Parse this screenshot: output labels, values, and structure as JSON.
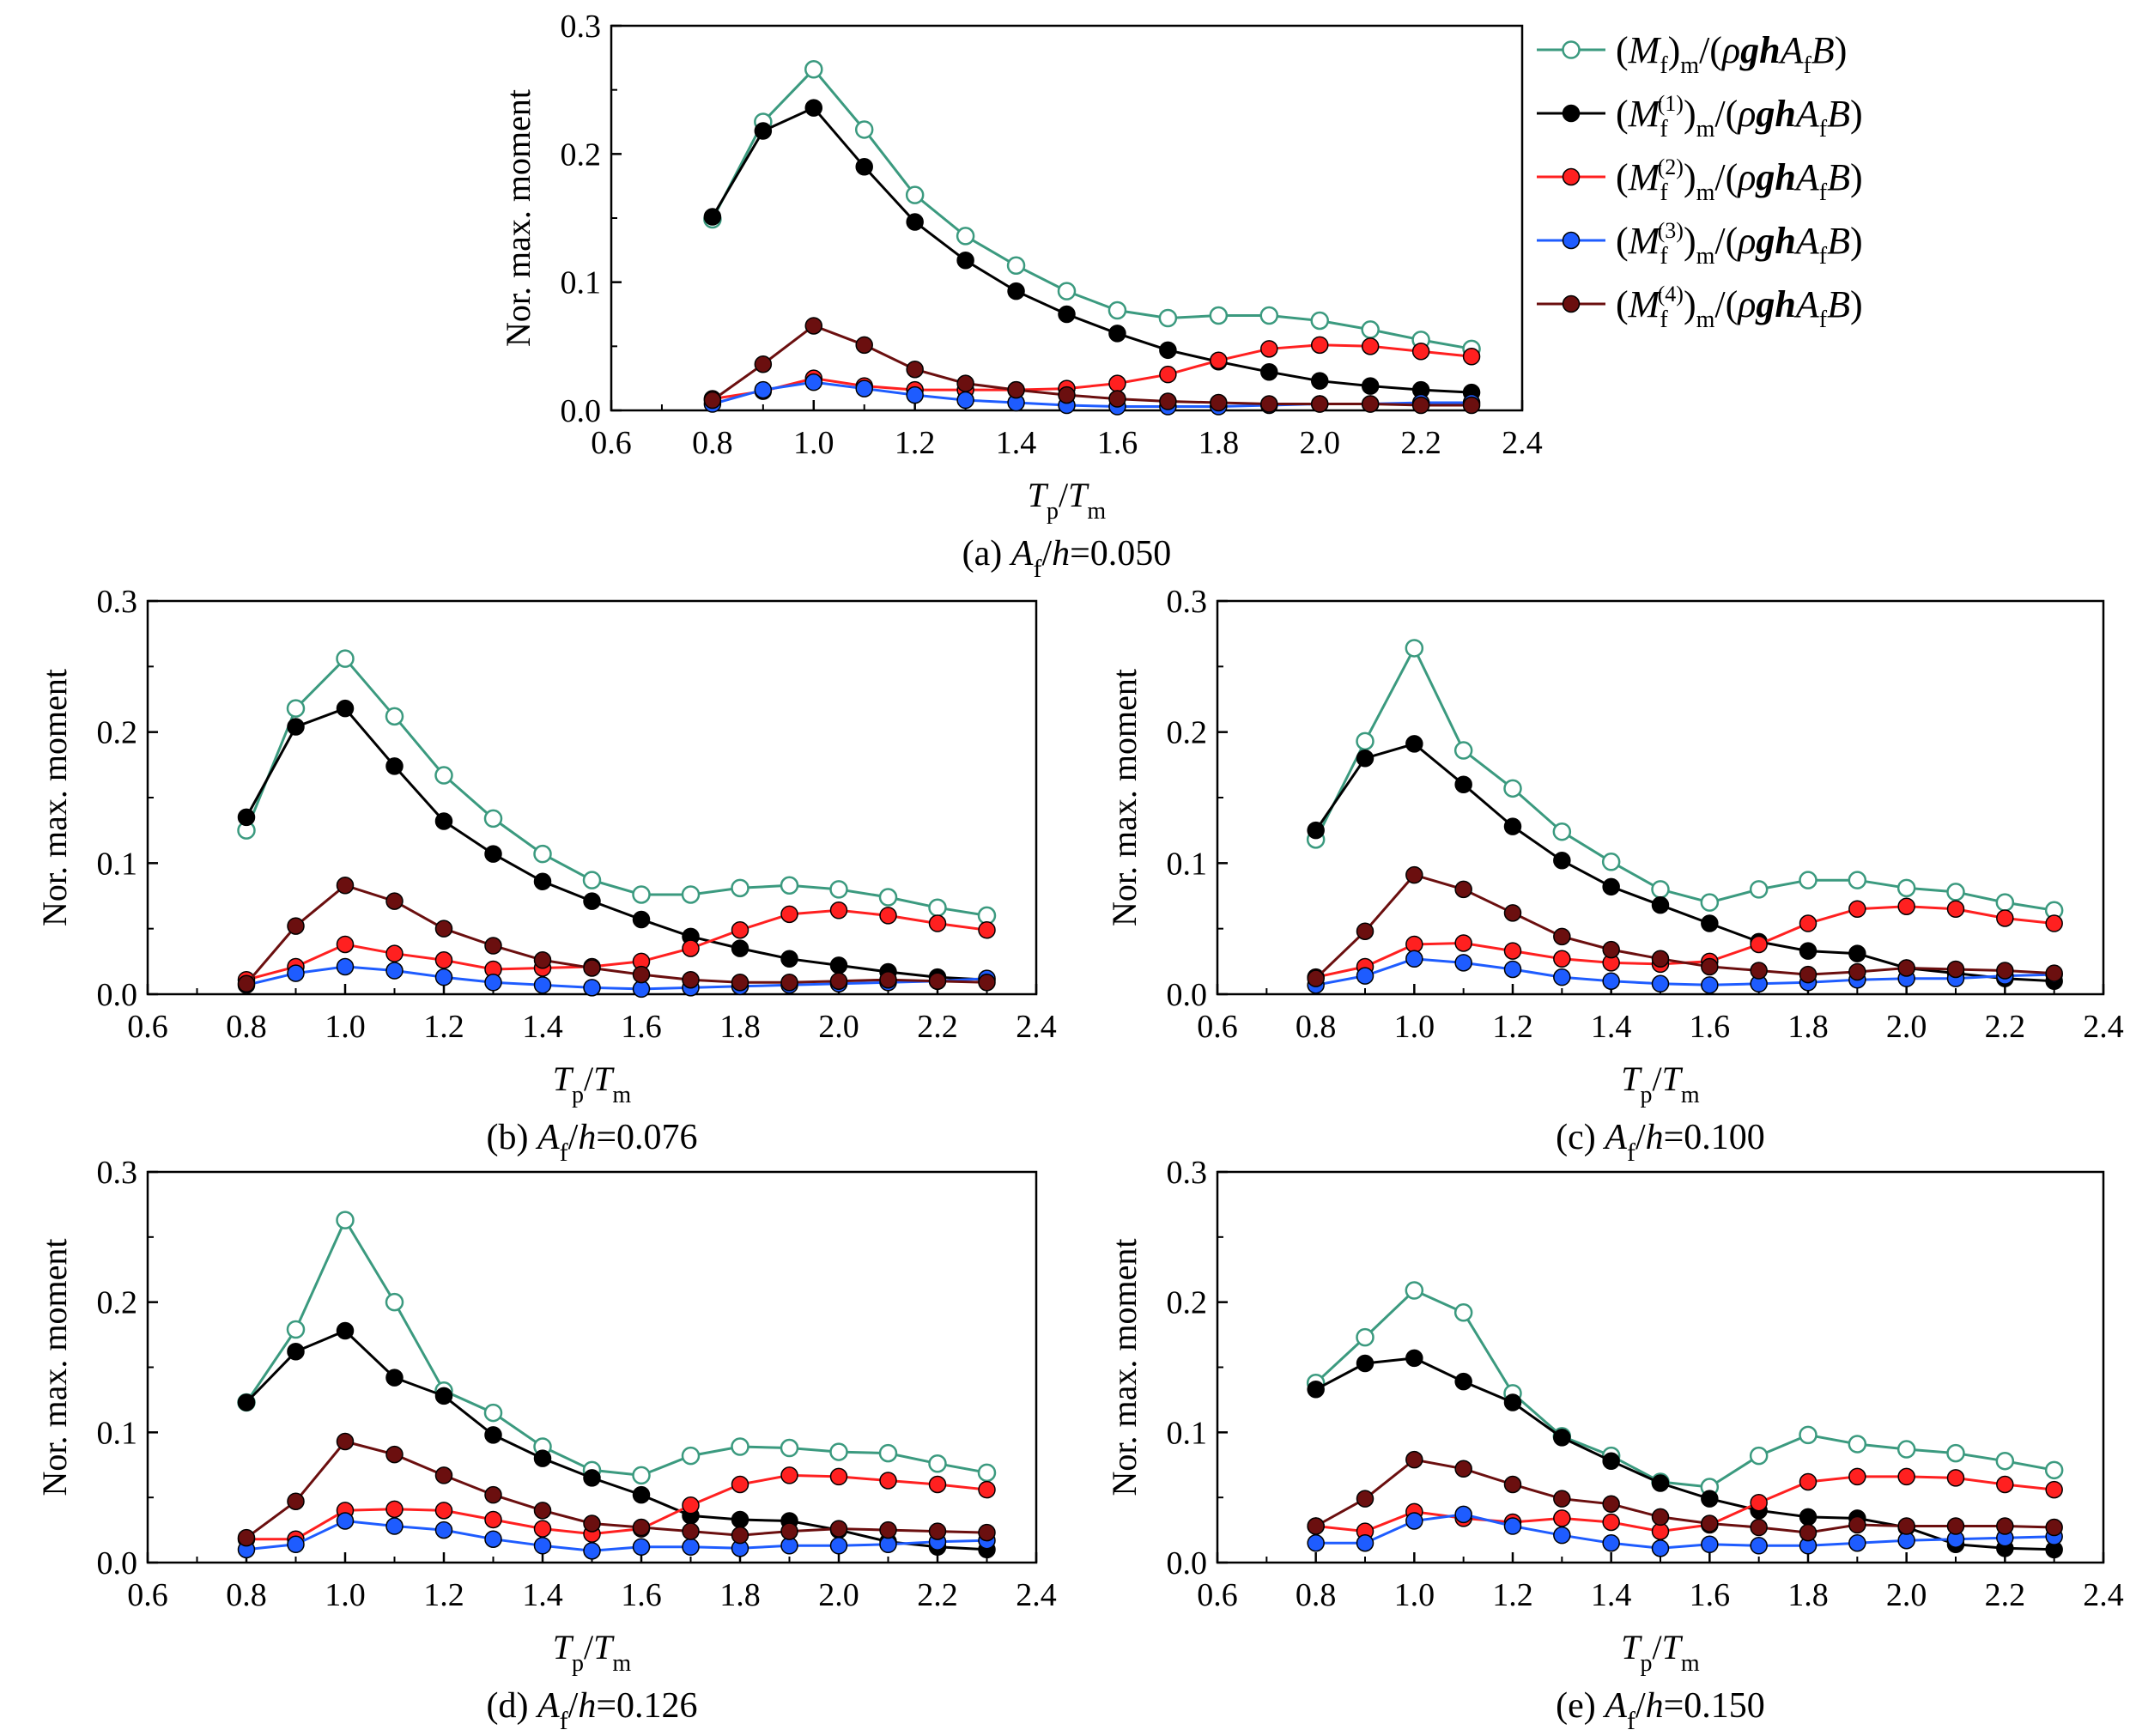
{
  "chart_data": [
    {
      "id": "a",
      "type": "line",
      "caption": {
        "prefix": "(a) ",
        "var": "A",
        "sub": "f",
        "mid": "/",
        "var2": "h",
        "suffix": "=0.050"
      },
      "ylabel": "Nor. max. moment",
      "xlabel": {
        "main": "T",
        "sub": "p",
        "slash": "/",
        "main2": "T",
        "sub2": "m"
      },
      "xlim": [
        0.6,
        2.4
      ],
      "ylim": [
        0.0,
        0.3
      ],
      "xticks": [
        "0.6",
        "0.8",
        "1.0",
        "1.2",
        "1.4",
        "1.6",
        "1.8",
        "2.0",
        "2.2",
        "2.4"
      ],
      "yticks": [
        "0.0",
        "0.1",
        "0.2",
        "0.3"
      ],
      "x": [
        0.8,
        0.9,
        1.0,
        1.1,
        1.2,
        1.3,
        1.4,
        1.5,
        1.6,
        1.7,
        1.8,
        1.9,
        2.0,
        2.1,
        2.2,
        2.3
      ],
      "series": [
        {
          "key": "total",
          "values": [
            0.149,
            0.225,
            0.266,
            0.219,
            0.168,
            0.136,
            0.113,
            0.093,
            0.078,
            0.072,
            0.074,
            0.074,
            0.07,
            0.063,
            0.055,
            0.048
          ]
        },
        {
          "key": "m1",
          "values": [
            0.151,
            0.218,
            0.236,
            0.19,
            0.147,
            0.117,
            0.093,
            0.075,
            0.06,
            0.047,
            0.038,
            0.03,
            0.023,
            0.019,
            0.016,
            0.014
          ]
        },
        {
          "key": "m2",
          "values": [
            0.009,
            0.015,
            0.025,
            0.019,
            0.016,
            0.016,
            0.016,
            0.017,
            0.021,
            0.028,
            0.039,
            0.048,
            0.051,
            0.05,
            0.046,
            0.042
          ]
        },
        {
          "key": "m3",
          "values": [
            0.005,
            0.016,
            0.022,
            0.017,
            0.012,
            0.008,
            0.006,
            0.004,
            0.003,
            0.003,
            0.003,
            0.004,
            0.005,
            0.005,
            0.006,
            0.006
          ]
        },
        {
          "key": "m4",
          "values": [
            0.008,
            0.036,
            0.066,
            0.051,
            0.032,
            0.021,
            0.016,
            0.012,
            0.009,
            0.007,
            0.006,
            0.005,
            0.005,
            0.005,
            0.004,
            0.004
          ]
        }
      ]
    },
    {
      "id": "b",
      "type": "line",
      "caption": {
        "prefix": "(b) ",
        "var": "A",
        "sub": "f",
        "mid": "/",
        "var2": "h",
        "suffix": "=0.076"
      },
      "ylabel": "Nor. max. moment",
      "xlabel": {
        "main": "T",
        "sub": "p",
        "slash": "/",
        "main2": "T",
        "sub2": "m"
      },
      "xlim": [
        0.6,
        2.4
      ],
      "ylim": [
        0.0,
        0.3
      ],
      "xticks": [
        "0.6",
        "0.8",
        "1.0",
        "1.2",
        "1.4",
        "1.6",
        "1.8",
        "2.0",
        "2.2",
        "2.4"
      ],
      "yticks": [
        "0.0",
        "0.1",
        "0.2",
        "0.3"
      ],
      "x": [
        0.8,
        0.9,
        1.0,
        1.1,
        1.2,
        1.3,
        1.4,
        1.5,
        1.6,
        1.7,
        1.8,
        1.9,
        2.0,
        2.1,
        2.2,
        2.3
      ],
      "series": [
        {
          "key": "total",
          "values": [
            0.125,
            0.218,
            0.256,
            0.212,
            0.167,
            0.134,
            0.107,
            0.087,
            0.076,
            0.076,
            0.081,
            0.083,
            0.08,
            0.074,
            0.066,
            0.06
          ]
        },
        {
          "key": "m1",
          "values": [
            0.135,
            0.204,
            0.218,
            0.174,
            0.132,
            0.107,
            0.086,
            0.071,
            0.057,
            0.044,
            0.035,
            0.027,
            0.022,
            0.017,
            0.013,
            0.011
          ]
        },
        {
          "key": "m2",
          "values": [
            0.011,
            0.021,
            0.038,
            0.031,
            0.026,
            0.019,
            0.02,
            0.021,
            0.025,
            0.035,
            0.049,
            0.061,
            0.064,
            0.06,
            0.054,
            0.049
          ]
        },
        {
          "key": "m3",
          "values": [
            0.007,
            0.016,
            0.021,
            0.018,
            0.013,
            0.009,
            0.007,
            0.005,
            0.004,
            0.005,
            0.006,
            0.007,
            0.008,
            0.009,
            0.01,
            0.012
          ]
        },
        {
          "key": "m4",
          "values": [
            0.008,
            0.052,
            0.083,
            0.071,
            0.05,
            0.037,
            0.026,
            0.02,
            0.015,
            0.011,
            0.009,
            0.009,
            0.01,
            0.011,
            0.01,
            0.009
          ]
        }
      ]
    },
    {
      "id": "c",
      "type": "line",
      "caption": {
        "prefix": "(c) ",
        "var": "A",
        "sub": "f",
        "mid": "/",
        "var2": "h",
        "suffix": "=0.100"
      },
      "ylabel": "Nor. max. moment",
      "xlabel": {
        "main": "T",
        "sub": "p",
        "slash": "/",
        "main2": "T",
        "sub2": "m"
      },
      "xlim": [
        0.6,
        2.4
      ],
      "ylim": [
        0.0,
        0.3
      ],
      "xticks": [
        "0.6",
        "0.8",
        "1.0",
        "1.2",
        "1.4",
        "1.6",
        "1.8",
        "2.0",
        "2.2",
        "2.4"
      ],
      "yticks": [
        "0.0",
        "0.1",
        "0.2",
        "0.3"
      ],
      "x": [
        0.8,
        0.9,
        1.0,
        1.1,
        1.2,
        1.3,
        1.4,
        1.5,
        1.6,
        1.7,
        1.8,
        1.9,
        2.0,
        2.1,
        2.2,
        2.3
      ],
      "series": [
        {
          "key": "total",
          "values": [
            0.118,
            0.193,
            0.264,
            0.186,
            0.157,
            0.124,
            0.101,
            0.08,
            0.07,
            0.08,
            0.087,
            0.087,
            0.081,
            0.078,
            0.07,
            0.064
          ]
        },
        {
          "key": "m1",
          "values": [
            0.125,
            0.18,
            0.191,
            0.16,
            0.128,
            0.102,
            0.082,
            0.068,
            0.054,
            0.04,
            0.033,
            0.031,
            0.02,
            0.016,
            0.012,
            0.01
          ]
        },
        {
          "key": "m2",
          "values": [
            0.013,
            0.021,
            0.038,
            0.039,
            0.033,
            0.027,
            0.024,
            0.023,
            0.025,
            0.038,
            0.054,
            0.065,
            0.067,
            0.065,
            0.058,
            0.054
          ]
        },
        {
          "key": "m3",
          "values": [
            0.007,
            0.014,
            0.027,
            0.024,
            0.019,
            0.013,
            0.01,
            0.008,
            0.007,
            0.008,
            0.009,
            0.011,
            0.012,
            0.012,
            0.014,
            0.015
          ]
        },
        {
          "key": "m4",
          "values": [
            0.012,
            0.048,
            0.091,
            0.08,
            0.062,
            0.044,
            0.034,
            0.027,
            0.021,
            0.018,
            0.015,
            0.017,
            0.02,
            0.019,
            0.018,
            0.016
          ]
        }
      ]
    },
    {
      "id": "d",
      "type": "line",
      "caption": {
        "prefix": "(d) ",
        "var": "A",
        "sub": "f",
        "mid": "/",
        "var2": "h",
        "suffix": "=0.126"
      },
      "ylabel": "Nor. max. moment",
      "xlabel": {
        "main": "T",
        "sub": "p",
        "slash": "/",
        "main2": "T",
        "sub2": "m"
      },
      "xlim": [
        0.6,
        2.4
      ],
      "ylim": [
        0.0,
        0.3
      ],
      "xticks": [
        "0.6",
        "0.8",
        "1.0",
        "1.2",
        "1.4",
        "1.6",
        "1.8",
        "2.0",
        "2.2",
        "2.4"
      ],
      "yticks": [
        "0.0",
        "0.1",
        "0.2",
        "0.3"
      ],
      "x": [
        0.8,
        0.9,
        1.0,
        1.1,
        1.2,
        1.3,
        1.4,
        1.5,
        1.6,
        1.7,
        1.8,
        1.9,
        2.0,
        2.1,
        2.2,
        2.3
      ],
      "series": [
        {
          "key": "total",
          "values": [
            0.123,
            0.179,
            0.263,
            0.2,
            0.132,
            0.115,
            0.089,
            0.071,
            0.067,
            0.082,
            0.089,
            0.088,
            0.085,
            0.084,
            0.076,
            0.069
          ]
        },
        {
          "key": "m1",
          "values": [
            0.123,
            0.162,
            0.178,
            0.142,
            0.128,
            0.098,
            0.08,
            0.065,
            0.052,
            0.036,
            0.033,
            0.032,
            0.025,
            0.016,
            0.012,
            0.01
          ]
        },
        {
          "key": "m2",
          "values": [
            0.018,
            0.018,
            0.04,
            0.041,
            0.04,
            0.033,
            0.026,
            0.022,
            0.026,
            0.044,
            0.06,
            0.067,
            0.066,
            0.063,
            0.06,
            0.056
          ]
        },
        {
          "key": "m3",
          "values": [
            0.01,
            0.014,
            0.032,
            0.028,
            0.025,
            0.018,
            0.013,
            0.009,
            0.012,
            0.012,
            0.011,
            0.013,
            0.013,
            0.014,
            0.016,
            0.017
          ]
        },
        {
          "key": "m4",
          "values": [
            0.019,
            0.047,
            0.093,
            0.083,
            0.067,
            0.052,
            0.04,
            0.03,
            0.027,
            0.024,
            0.021,
            0.024,
            0.026,
            0.025,
            0.024,
            0.023
          ]
        }
      ]
    },
    {
      "id": "e",
      "type": "line",
      "caption": {
        "prefix": "(e) ",
        "var": "A",
        "sub": "f",
        "mid": "/",
        "var2": "h",
        "suffix": "=0.150"
      },
      "ylabel": "Nor. max. moment",
      "xlabel": {
        "main": "T",
        "sub": "p",
        "slash": "/",
        "main2": "T",
        "sub2": "m"
      },
      "xlim": [
        0.6,
        2.4
      ],
      "ylim": [
        0.0,
        0.3
      ],
      "xticks": [
        "0.6",
        "0.8",
        "1.0",
        "1.2",
        "1.4",
        "1.6",
        "1.8",
        "2.0",
        "2.2",
        "2.4"
      ],
      "yticks": [
        "0.0",
        "0.1",
        "0.2",
        "0.3"
      ],
      "x": [
        0.8,
        0.9,
        1.0,
        1.1,
        1.2,
        1.3,
        1.4,
        1.5,
        1.6,
        1.7,
        1.8,
        1.9,
        2.0,
        2.1,
        2.2,
        2.3
      ],
      "series": [
        {
          "key": "total",
          "values": [
            0.138,
            0.173,
            0.209,
            0.192,
            0.13,
            0.097,
            0.082,
            0.062,
            0.058,
            0.082,
            0.098,
            0.091,
            0.087,
            0.084,
            0.078,
            0.071
          ]
        },
        {
          "key": "m1",
          "values": [
            0.133,
            0.153,
            0.157,
            0.139,
            0.123,
            0.096,
            0.078,
            0.061,
            0.049,
            0.04,
            0.035,
            0.034,
            0.027,
            0.014,
            0.011,
            0.01
          ]
        },
        {
          "key": "m2",
          "values": [
            0.028,
            0.024,
            0.039,
            0.034,
            0.031,
            0.034,
            0.031,
            0.024,
            0.029,
            0.046,
            0.062,
            0.066,
            0.066,
            0.065,
            0.06,
            0.056
          ]
        },
        {
          "key": "m3",
          "values": [
            0.015,
            0.015,
            0.032,
            0.037,
            0.028,
            0.021,
            0.015,
            0.011,
            0.014,
            0.013,
            0.013,
            0.015,
            0.017,
            0.018,
            0.019,
            0.02
          ]
        },
        {
          "key": "m4",
          "values": [
            0.028,
            0.049,
            0.079,
            0.072,
            0.06,
            0.049,
            0.045,
            0.035,
            0.03,
            0.027,
            0.023,
            0.029,
            0.028,
            0.028,
            0.028,
            0.027
          ]
        }
      ]
    }
  ],
  "series_styles": [
    {
      "key": "total",
      "line_color": "#3b9a7f",
      "marker": "open-circle",
      "marker_fill": "#ffffff"
    },
    {
      "key": "m1",
      "line_color": "#000000",
      "marker": "filled-circle",
      "marker_fill": "#000000"
    },
    {
      "key": "m2",
      "line_color": "#ff2020",
      "marker": "filled-circle",
      "marker_fill": "#ff2020"
    },
    {
      "key": "m3",
      "line_color": "#1e5cff",
      "marker": "filled-circle",
      "marker_fill": "#1e5cff"
    },
    {
      "key": "m4",
      "line_color": "#6b0f0f",
      "marker": "filled-circle",
      "marker_fill": "#6b0f0f"
    }
  ],
  "legend": {
    "placement": "right of panel (a)",
    "entries": [
      {
        "key": "total",
        "text": "(Mf)m/(ρghAfB)",
        "M": "M",
        "sub": "f",
        "sup": "",
        "tail": "m",
        "den_open": "/(",
        "rho": "ρ",
        "gh": "gh",
        "A": "A",
        "Asub": "f",
        "B": "B",
        "den_close": ")"
      },
      {
        "key": "m1",
        "text": "(Mf(1))m/(ρghAfB)",
        "M": "M",
        "sub": "f",
        "sup": "(1)",
        "tail": "m",
        "den_open": "/(",
        "rho": "ρ",
        "gh": "gh",
        "A": "A",
        "Asub": "f",
        "B": "B",
        "den_close": ")"
      },
      {
        "key": "m2",
        "text": "(Mf(2))m/(ρghAfB)",
        "M": "M",
        "sub": "f",
        "sup": "(2)",
        "tail": "m",
        "den_open": "/(",
        "rho": "ρ",
        "gh": "gh",
        "A": "A",
        "Asub": "f",
        "B": "B",
        "den_close": ")"
      },
      {
        "key": "m3",
        "text": "(Mf(3))m/(ρghAfB)",
        "M": "M",
        "sub": "f",
        "sup": "(3)",
        "tail": "m",
        "den_open": "/(",
        "rho": "ρ",
        "gh": "gh",
        "A": "A",
        "Asub": "f",
        "B": "B",
        "den_close": ")"
      },
      {
        "key": "m4",
        "text": "(Mf(4))m/(ρghAfB)",
        "M": "M",
        "sub": "f",
        "sup": "(4)",
        "tail": "m",
        "den_open": "/(",
        "rho": "ρ",
        "gh": "gh",
        "A": "A",
        "Asub": "f",
        "B": "B",
        "den_close": ")"
      }
    ]
  }
}
